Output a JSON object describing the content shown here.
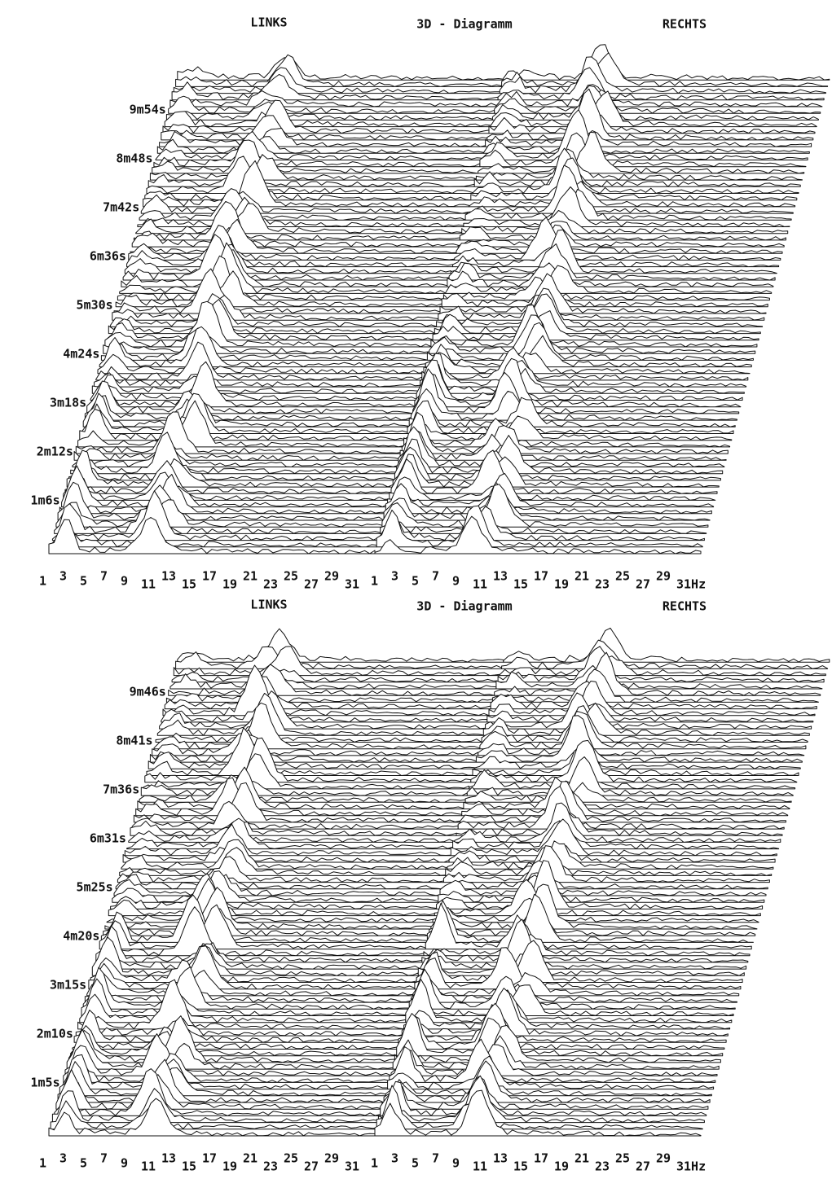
{
  "panels": [
    {
      "left_title": "LINKS",
      "center_title": "3D - Diagramm",
      "right_title": "RECHTS",
      "time_labels": [
        "9m54s",
        "8m48s",
        "7m42s",
        "6m36s",
        "5m30s",
        "4m24s",
        "3m18s",
        "2m12s",
        "1m6s"
      ],
      "x_labels_left": [
        "1",
        "3",
        "5",
        "7",
        "9",
        "11",
        "13",
        "15",
        "17",
        "19",
        "21",
        "23",
        "25",
        "27",
        "29",
        "31"
      ],
      "x_labels_right": [
        "1",
        "3",
        "5",
        "7",
        "9",
        "11",
        "13",
        "15",
        "17",
        "19",
        "21",
        "23",
        "25",
        "27",
        "29",
        "31Hz"
      ]
    },
    {
      "left_title": "LINKS",
      "center_title": "3D - Diagramm",
      "right_title": "RECHTS",
      "time_labels": [
        "9m46s",
        "8m41s",
        "7m36s",
        "6m31s",
        "5m25s",
        "4m20s",
        "3m15s",
        "2m10s",
        "1m5s"
      ],
      "x_labels_left": [
        "1",
        "3",
        "5",
        "7",
        "9",
        "11",
        "13",
        "15",
        "17",
        "19",
        "21",
        "23",
        "25",
        "27",
        "29",
        "31"
      ],
      "x_labels_right": [
        "1",
        "3",
        "5",
        "7",
        "9",
        "11",
        "13",
        "15",
        "17",
        "19",
        "21",
        "23",
        "25",
        "27",
        "29",
        "31Hz"
      ]
    }
  ]
}
